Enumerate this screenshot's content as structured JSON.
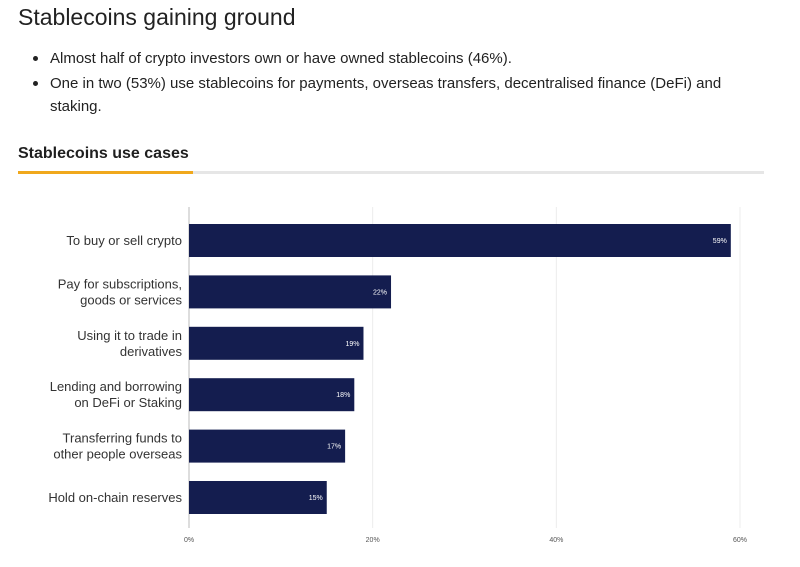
{
  "header": {
    "title": "Stablecoins gaining ground"
  },
  "bullets": [
    "Almost half of crypto investors own or have owned stablecoins (46%).",
    "One in two (53%) use stablecoins for payments, overseas transfers, decentralised finance (DeFi) and staking."
  ],
  "section": {
    "heading": "Stablecoins use cases"
  },
  "colors": {
    "bar": "#141d4f",
    "accent": "#f0a81c",
    "grid": "#ececec",
    "axis": "#bbbbbb"
  },
  "chart_data": {
    "type": "bar",
    "orientation": "horizontal",
    "title": "Stablecoins use cases",
    "categories": [
      [
        "To buy or sell crypto"
      ],
      [
        "Pay for subscriptions,",
        "goods or services"
      ],
      [
        "Using it to trade in",
        "derivatives"
      ],
      [
        "Lending and borrowing",
        "on DeFi or Staking"
      ],
      [
        "Transferring funds to",
        "other people overseas"
      ],
      [
        "Hold on-chain reserves"
      ]
    ],
    "values": [
      59,
      22,
      19,
      18,
      17,
      15
    ],
    "value_labels": [
      "59%",
      "22%",
      "19%",
      "18%",
      "17%",
      "15%"
    ],
    "xlim": [
      0,
      60
    ],
    "ticks": [
      0,
      20,
      40,
      60
    ],
    "tick_labels": [
      "0%",
      "20%",
      "40%",
      "60%"
    ],
    "grid": true,
    "legend": "none"
  }
}
